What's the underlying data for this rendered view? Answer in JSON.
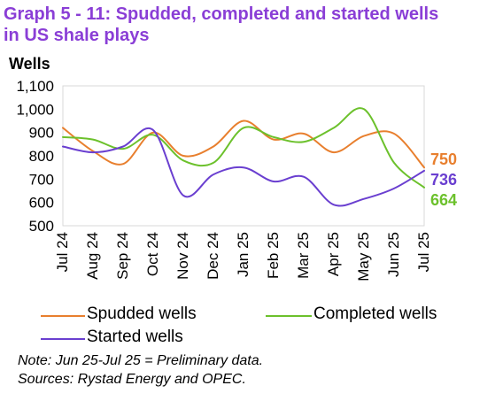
{
  "title_line1": "Graph 5 - 11: Spudded, completed and started wells",
  "title_line2": "in US shale plays",
  "colors": {
    "title": "#8a3ed6",
    "spudded": "#e87f2e",
    "completed": "#6cc12c",
    "started": "#6a3fd0"
  },
  "chart_data": {
    "type": "line",
    "ylabel": "Wells",
    "ylim": [
      500,
      1100
    ],
    "yticks": [
      "500",
      "600",
      "700",
      "800",
      "900",
      "1,000",
      "1,100"
    ],
    "categories": [
      "Jul 24",
      "Aug 24",
      "Sep 24",
      "Oct 24",
      "Nov 24",
      "Dec 24",
      "Jan 25",
      "Feb 25",
      "Mar 25",
      "Apr 25",
      "May 25",
      "Jun 25",
      "Jul 25"
    ],
    "series": [
      {
        "name": "Spudded wells",
        "color": "#e87f2e",
        "values": [
          920,
          820,
          765,
          900,
          800,
          840,
          950,
          870,
          895,
          815,
          885,
          895,
          750
        ],
        "end_label": "750"
      },
      {
        "name": "Completed wells",
        "color": "#6cc12c",
        "values": [
          880,
          870,
          830,
          890,
          780,
          770,
          920,
          880,
          860,
          920,
          1000,
          770,
          664
        ],
        "end_label": "664"
      },
      {
        "name": "Started wells",
        "color": "#6a3fd0",
        "values": [
          840,
          815,
          840,
          910,
          630,
          720,
          750,
          690,
          710,
          590,
          615,
          660,
          736
        ],
        "end_label": "736"
      }
    ],
    "legend_position": "bottom",
    "grid": false
  },
  "legend": {
    "spudded": "Spudded wells",
    "completed": "Completed wells",
    "started": "Started wells"
  },
  "notes": {
    "note": "Note: Jun 25-Jul 25 = Preliminary data.",
    "sources": "Sources: Rystad Energy and OPEC."
  }
}
